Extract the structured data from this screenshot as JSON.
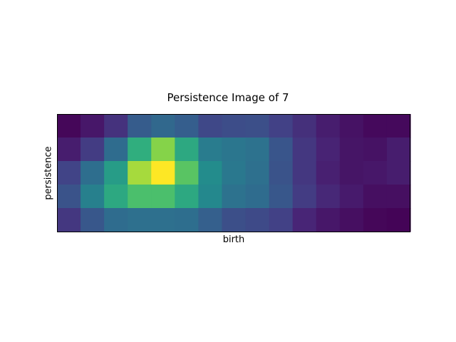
{
  "chart_data": {
    "type": "heatmap",
    "title": "Persistence Image of 7",
    "xlabel": "birth",
    "ylabel": "persistence",
    "colormap": "viridis",
    "vmin": 0,
    "vmax": 1,
    "grid": false,
    "x_ticks": [],
    "y_ticks": [],
    "rows_top_to_bottom": [
      [
        0.02,
        0.08,
        0.18,
        0.36,
        0.42,
        0.37,
        0.27,
        0.29,
        0.3,
        0.24,
        0.17,
        0.1,
        0.06,
        0.03,
        0.03
      ],
      [
        0.1,
        0.22,
        0.44,
        0.72,
        0.86,
        0.7,
        0.52,
        0.49,
        0.47,
        0.33,
        0.2,
        0.12,
        0.07,
        0.06,
        0.1
      ],
      [
        0.25,
        0.45,
        0.66,
        0.9,
        1.0,
        0.8,
        0.6,
        0.5,
        0.46,
        0.32,
        0.2,
        0.11,
        0.07,
        0.08,
        0.1
      ],
      [
        0.32,
        0.54,
        0.7,
        0.78,
        0.78,
        0.7,
        0.58,
        0.47,
        0.44,
        0.34,
        0.22,
        0.14,
        0.09,
        0.05,
        0.05
      ],
      [
        0.2,
        0.34,
        0.44,
        0.46,
        0.46,
        0.45,
        0.38,
        0.3,
        0.28,
        0.24,
        0.13,
        0.08,
        0.05,
        0.02,
        0.01
      ]
    ]
  }
}
